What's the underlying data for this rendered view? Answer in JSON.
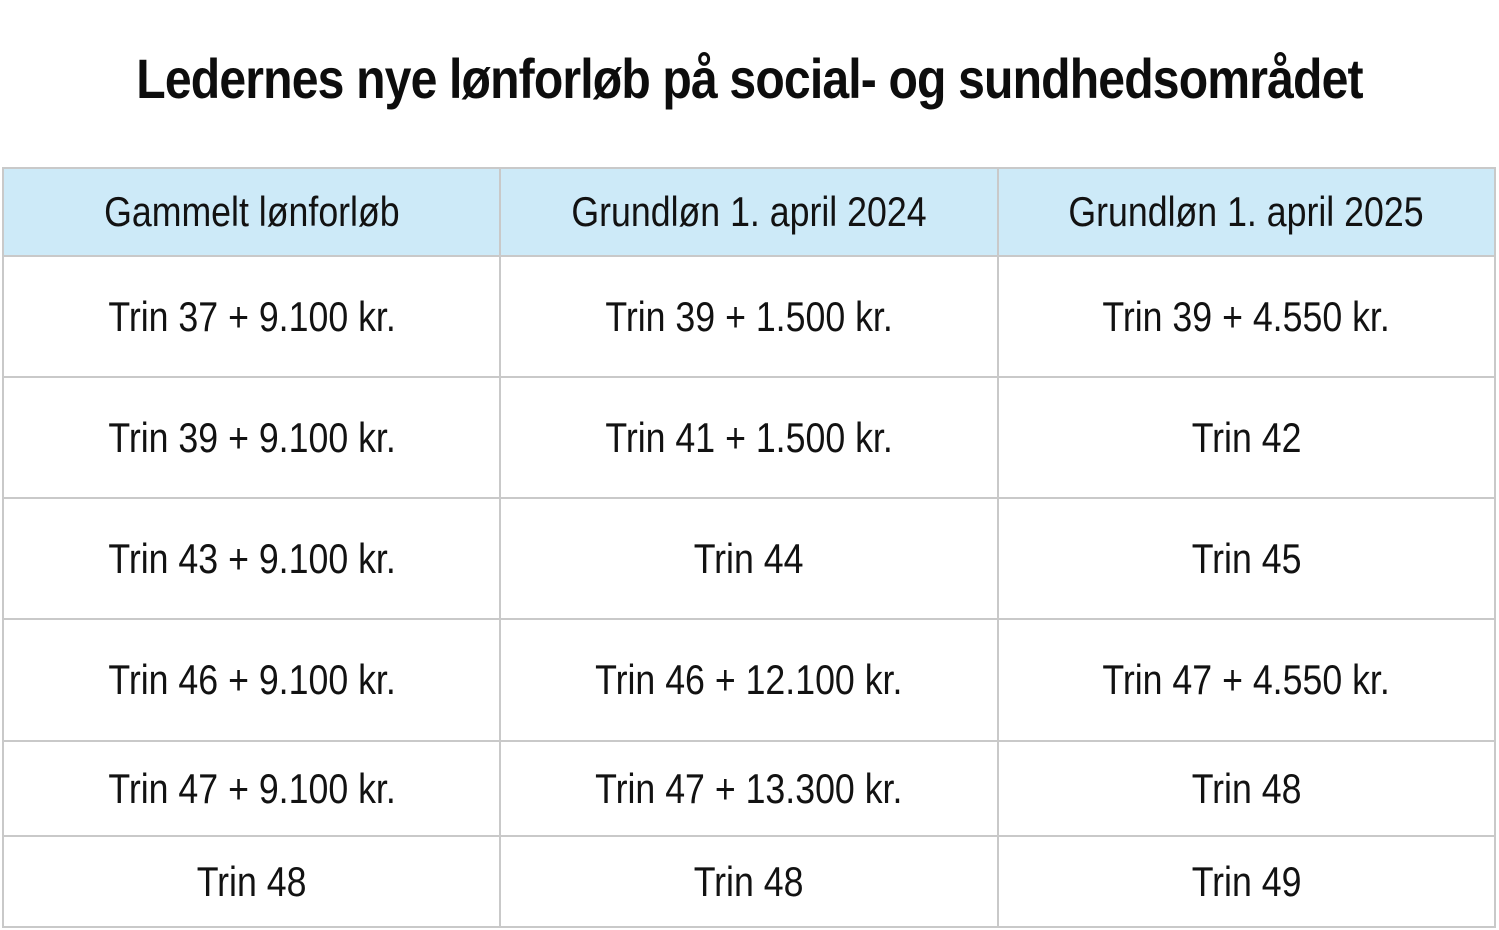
{
  "title": "Ledernes nye lønforløb på social- og sundhedsområdet",
  "table": {
    "headers": [
      "Gammelt lønforløb",
      "Grundløn 1. april 2024",
      "Grundløn 1. april 2025"
    ],
    "rows": [
      [
        "Trin 37 + 9.100 kr.",
        "Trin 39 + 1.500 kr.",
        "Trin 39 + 4.550 kr."
      ],
      [
        "Trin 39 + 9.100 kr.",
        "Trin 41 + 1.500 kr.",
        "Trin 42"
      ],
      [
        "Trin 43 + 9.100 kr.",
        "Trin 44",
        "Trin 45"
      ],
      [
        "Trin 46 + 9.100 kr.",
        "Trin 46 + 12.100 kr.",
        "Trin 47 + 4.550 kr."
      ],
      [
        "Trin 47 + 9.100 kr.",
        "Trin 47 + 13.300 kr.",
        "Trin 48"
      ],
      [
        "Trin 48",
        "Trin 48",
        "Trin 49"
      ]
    ]
  },
  "colors": {
    "header_background": "#cdeaf8",
    "border": "#c9c9c9",
    "text": "#121212",
    "page_background": "#ffffff"
  }
}
